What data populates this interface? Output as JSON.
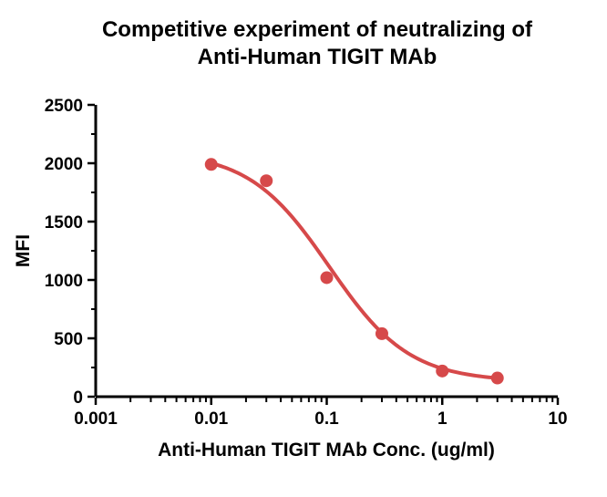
{
  "chart_data": {
    "type": "scatter",
    "title_line1": "Competitive experiment of neutralizing of",
    "title_line2": "Anti-Human TIGIT MAb",
    "xlabel": "Anti-Human TIGIT MAb Conc. (ug/ml)",
    "ylabel": "MFI",
    "x_scale": "log10",
    "xlim": [
      0.001,
      10
    ],
    "ylim": [
      0,
      2500
    ],
    "x_major_ticks": [
      0.001,
      0.01,
      0.1,
      1,
      10
    ],
    "x_tick_labels": [
      "0.001",
      "0.01",
      "0.1",
      "1",
      "10"
    ],
    "y_major_ticks": [
      0,
      500,
      1000,
      1500,
      2000,
      2500
    ],
    "y_tick_labels": [
      "0",
      "500",
      "1000",
      "1500",
      "2000",
      "2500"
    ],
    "y_minor_ticks": [
      250,
      750,
      1250,
      1750,
      2250
    ],
    "grid": "off",
    "legend": "none",
    "points": [
      {
        "x": 0.01,
        "y": 1990
      },
      {
        "x": 0.03,
        "y": 1850
      },
      {
        "x": 0.1,
        "y": 1020
      },
      {
        "x": 0.3,
        "y": 540
      },
      {
        "x": 1,
        "y": 220
      },
      {
        "x": 3,
        "y": 160
      }
    ],
    "fit_curve": {
      "model": "4PL",
      "top": 2100,
      "bottom": 130,
      "ec50": 0.105,
      "hill": 1.25,
      "x_start": 0.0095,
      "x_end": 3.1
    },
    "colors": {
      "series": "#d6494a",
      "axis": "#000000",
      "background": "#ffffff"
    }
  }
}
